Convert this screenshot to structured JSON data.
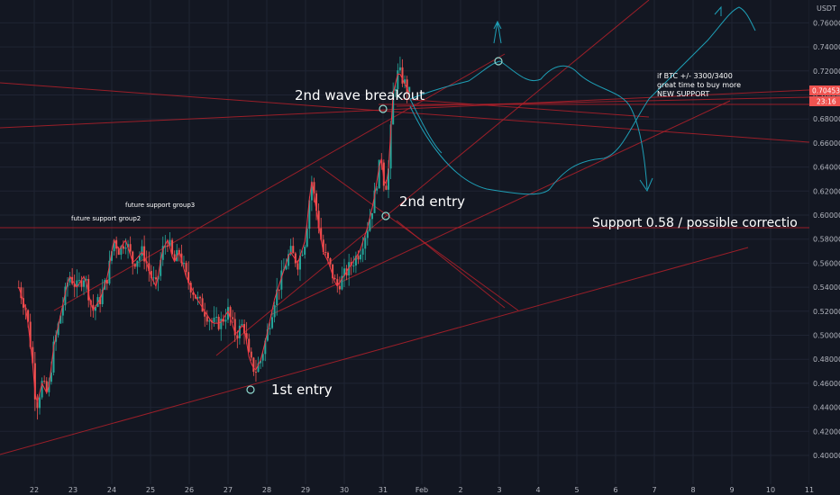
{
  "chart_data": {
    "type": "candlestick",
    "currency": "USDT",
    "y_ticks": [
      "0.76000",
      "0.74000",
      "0.72000",
      "0.70000",
      "0.68000",
      "0.66000",
      "0.64000",
      "0.62000",
      "0.60000",
      "0.58000",
      "0.56000",
      "0.54000",
      "0.52000",
      "0.50000",
      "0.48000",
      "0.46000",
      "0.44000",
      "0.42000",
      "0.40000"
    ],
    "x_ticks": [
      "22",
      "23",
      "24",
      "25",
      "26",
      "27",
      "28",
      "29",
      "30",
      "31",
      "Feb",
      "2",
      "3",
      "4",
      "5",
      "6",
      "7",
      "8",
      "9",
      "10",
      "11"
    ],
    "last_price": "0.70453",
    "countdown": "23:16",
    "ylim": [
      0.39,
      0.77
    ],
    "price_path": [
      [
        21.6,
        0.54
      ],
      [
        21.8,
        0.52
      ],
      [
        21.95,
        0.48
      ],
      [
        22.05,
        0.44
      ],
      [
        22.2,
        0.46
      ],
      [
        22.35,
        0.45
      ],
      [
        22.5,
        0.49
      ],
      [
        22.7,
        0.52
      ],
      [
        22.9,
        0.55
      ],
      [
        23.1,
        0.54
      ],
      [
        23.3,
        0.55
      ],
      [
        23.5,
        0.52
      ],
      [
        23.7,
        0.53
      ],
      [
        23.9,
        0.55
      ],
      [
        24.05,
        0.58
      ],
      [
        24.2,
        0.57
      ],
      [
        24.35,
        0.58
      ],
      [
        24.55,
        0.56
      ],
      [
        24.8,
        0.57
      ],
      [
        25.0,
        0.55
      ],
      [
        25.15,
        0.54
      ],
      [
        25.3,
        0.57
      ],
      [
        25.45,
        0.58
      ],
      [
        25.6,
        0.56
      ],
      [
        25.75,
        0.57
      ],
      [
        25.9,
        0.55
      ],
      [
        26.05,
        0.54
      ],
      [
        26.2,
        0.53
      ],
      [
        26.4,
        0.52
      ],
      [
        26.6,
        0.51
      ],
      [
        26.8,
        0.51
      ],
      [
        27.0,
        0.52
      ],
      [
        27.2,
        0.5
      ],
      [
        27.4,
        0.51
      ],
      [
        27.55,
        0.48
      ],
      [
        27.7,
        0.47
      ],
      [
        27.85,
        0.48
      ],
      [
        28.0,
        0.5
      ],
      [
        28.2,
        0.53
      ],
      [
        28.4,
        0.55
      ],
      [
        28.6,
        0.57
      ],
      [
        28.8,
        0.56
      ],
      [
        29.0,
        0.58
      ],
      [
        29.15,
        0.63
      ],
      [
        29.3,
        0.6
      ],
      [
        29.45,
        0.57
      ],
      [
        29.6,
        0.56
      ],
      [
        29.8,
        0.54
      ],
      [
        30.0,
        0.55
      ],
      [
        30.2,
        0.56
      ],
      [
        30.4,
        0.57
      ],
      [
        30.6,
        0.59
      ],
      [
        30.75,
        0.61
      ],
      [
        30.85,
        0.63
      ],
      [
        30.95,
        0.65
      ],
      [
        31.05,
        0.62
      ],
      [
        31.15,
        0.64
      ],
      [
        31.25,
        0.7
      ],
      [
        31.4,
        0.72
      ],
      [
        31.55,
        0.71
      ],
      [
        31.7,
        0.7
      ]
    ],
    "moving_average_color": "#f23645",
    "annotations": {
      "first_entry": "1st entry",
      "second_entry": "2nd entry",
      "breakout": "2nd wave breakout",
      "support_group2": "future support group2",
      "support_group3": "future support group3",
      "support_correction": "Support 0.58 / possible correctio",
      "btc_note_1": "if BTC +/- 3300/3400",
      "btc_note_2": "great time to buy more",
      "btc_note_3": "NEW SUPPORT"
    },
    "colors": {
      "background": "#131722",
      "up": "#26a69a",
      "down": "#ef5350",
      "trendline": "#b2202a",
      "projection": "#1e9eb5",
      "price_badge": "#ef5350"
    }
  }
}
